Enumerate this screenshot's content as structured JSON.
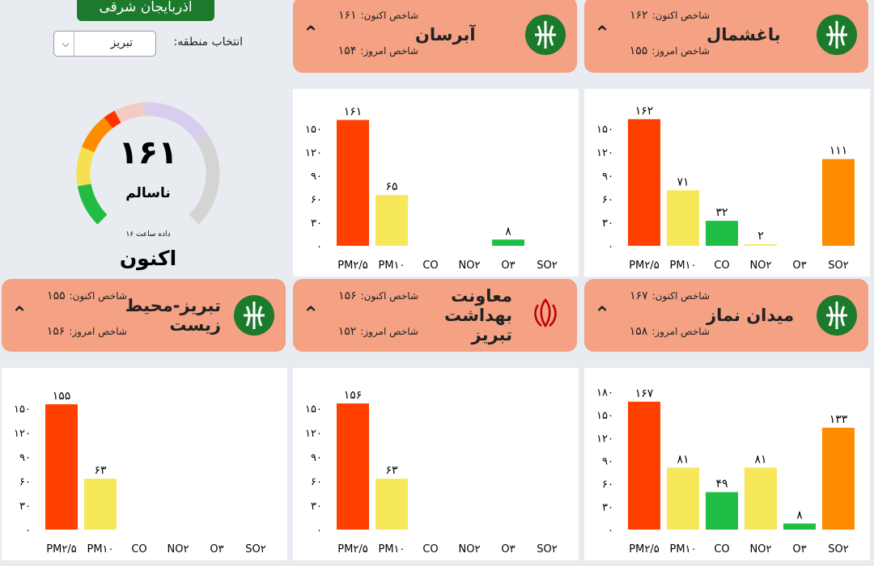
{
  "header": {
    "region": "آذربایجان شرقی",
    "select_label": "انتخاب منطقه:",
    "select_value": "تبریز"
  },
  "gauge": {
    "value": "۱۶۱",
    "status": "ناسالم",
    "time": "داده ساعت ۱۶",
    "caption": "اکنون"
  },
  "stations": [
    {
      "name": "باغشمال",
      "now_label": "شاخص اکنون:",
      "now": "۱۶۲",
      "today_label": "شاخص امروز:",
      "today": "۱۵۵"
    },
    {
      "name": "آبرسان",
      "now_label": "شاخص اکنون:",
      "now": "۱۶۱",
      "today_label": "شاخص امروز:",
      "today": "۱۵۴"
    },
    {
      "name": "میدان نماز",
      "now_label": "شاخص اکنون:",
      "now": "۱۶۷",
      "today_label": "شاخص امروز:",
      "today": "۱۵۸"
    },
    {
      "name": "معاونت بهداشت تبریز",
      "now_label": "شاخص اکنون:",
      "now": "۱۵۶",
      "today_label": "شاخص امروز:",
      "today": "۱۵۲"
    },
    {
      "name": "تبریز-محیط زیست",
      "now_label": "شاخص اکنون:",
      "now": "۱۵۵",
      "today_label": "شاخص امروز:",
      "today": "۱۵۶"
    }
  ],
  "chart_data": [
    {
      "type": "bar",
      "categories": [
        "PM۲/۵",
        "PM۱۰",
        "CO",
        "NO۲",
        "O۳",
        "SO۲"
      ],
      "values": [
        162,
        71,
        32,
        2,
        null,
        111
      ],
      "value_labels": [
        "۱۶۲",
        "۷۱",
        "۳۲",
        "۲",
        null,
        "۱۱۱"
      ],
      "colors": [
        "#ff4000",
        "#f7e85a",
        "#1fbf45",
        "#f7e85a",
        "#1fbf45",
        "#ff8c00"
      ],
      "ylim": [
        0,
        180
      ],
      "yticks": [
        {
          "value": 0,
          "label": "۰"
        },
        {
          "value": 30,
          "label": "۳۰"
        },
        {
          "value": 60,
          "label": "۶۰"
        },
        {
          "value": 90,
          "label": "۹۰"
        },
        {
          "value": 120,
          "label": "۱۲۰"
        },
        {
          "value": 150,
          "label": "۱۵۰"
        }
      ]
    },
    {
      "type": "bar",
      "categories": [
        "PM۲/۵",
        "PM۱۰",
        "CO",
        "NO۲",
        "O۳",
        "SO۲"
      ],
      "values": [
        161,
        65,
        null,
        null,
        8,
        null
      ],
      "value_labels": [
        "۱۶۱",
        "۶۵",
        null,
        null,
        "۸",
        null
      ],
      "colors": [
        "#ff4000",
        "#f7e85a",
        "#1fbf45",
        "#f7e85a",
        "#1fbf45",
        "#ff8c00"
      ],
      "ylim": [
        0,
        180
      ],
      "yticks": [
        {
          "value": 0,
          "label": "۰"
        },
        {
          "value": 30,
          "label": "۳۰"
        },
        {
          "value": 60,
          "label": "۶۰"
        },
        {
          "value": 90,
          "label": "۹۰"
        },
        {
          "value": 120,
          "label": "۱۲۰"
        },
        {
          "value": 150,
          "label": "۱۵۰"
        }
      ]
    },
    {
      "type": "bar",
      "categories": [
        "PM۲/۵",
        "PM۱۰",
        "CO",
        "NO۲",
        "O۳",
        "SO۲"
      ],
      "values": [
        167,
        81,
        49,
        81,
        8,
        133
      ],
      "value_labels": [
        "۱۶۷",
        "۸۱",
        "۴۹",
        "۸۱",
        "۸",
        "۱۳۳"
      ],
      "colors": [
        "#ff4000",
        "#f7e85a",
        "#1fbf45",
        "#f7e85a",
        "#1fbf45",
        "#ff8c00"
      ],
      "ylim": [
        0,
        190
      ],
      "yticks": [
        {
          "value": 0,
          "label": "۰"
        },
        {
          "value": 30,
          "label": "۳۰"
        },
        {
          "value": 60,
          "label": "۶۰"
        },
        {
          "value": 90,
          "label": "۹۰"
        },
        {
          "value": 120,
          "label": "۱۲۰"
        },
        {
          "value": 150,
          "label": "۱۵۰"
        },
        {
          "value": 180,
          "label": "۱۸۰"
        }
      ]
    },
    {
      "type": "bar",
      "categories": [
        "PM۲/۵",
        "PM۱۰",
        "CO",
        "NO۲",
        "O۳",
        "SO۲"
      ],
      "values": [
        156,
        63,
        null,
        null,
        null,
        null
      ],
      "value_labels": [
        "۱۵۶",
        "۶۳",
        null,
        null,
        null,
        null
      ],
      "colors": [
        "#ff4000",
        "#f7e85a",
        "#1fbf45",
        "#f7e85a",
        "#1fbf45",
        "#ff8c00"
      ],
      "ylim": [
        0,
        180
      ],
      "yticks": [
        {
          "value": 0,
          "label": "۰"
        },
        {
          "value": 30,
          "label": "۳۰"
        },
        {
          "value": 60,
          "label": "۶۰"
        },
        {
          "value": 90,
          "label": "۹۰"
        },
        {
          "value": 120,
          "label": "۱۲۰"
        },
        {
          "value": 150,
          "label": "۱۵۰"
        }
      ]
    },
    {
      "type": "bar",
      "categories": [
        "PM۲/۵",
        "PM۱۰",
        "CO",
        "NO۲",
        "O۳",
        "SO۲"
      ],
      "values": [
        155,
        63,
        null,
        null,
        null,
        null
      ],
      "value_labels": [
        "۱۵۵",
        "۶۳",
        null,
        null,
        null,
        null
      ],
      "colors": [
        "#ff4000",
        "#f7e85a",
        "#1fbf45",
        "#f7e85a",
        "#1fbf45",
        "#ff8c00"
      ],
      "ylim": [
        0,
        180
      ],
      "yticks": [
        {
          "value": 0,
          "label": "۰"
        },
        {
          "value": 30,
          "label": "۳۰"
        },
        {
          "value": 60,
          "label": "۶۰"
        },
        {
          "value": 90,
          "label": "۹۰"
        },
        {
          "value": 120,
          "label": "۱۲۰"
        },
        {
          "value": 150,
          "label": "۱۵۰"
        }
      ]
    }
  ]
}
